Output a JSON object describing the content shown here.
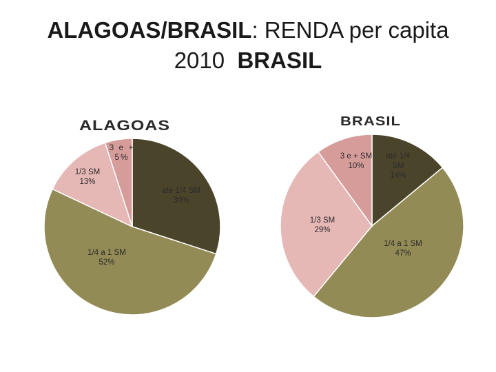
{
  "title": {
    "part1_bold": "ALAGOAS/BRASIL",
    "part1_rest": ": RENDA  per capita",
    "part2_year": "2010",
    "part2_bold": "BRASIL"
  },
  "colors": {
    "ate_1_4": "#4a442b",
    "de_1_4_a_1": "#938b55",
    "de_1_3": "#e5b8b6",
    "tres_e_mais": "#d69c9a",
    "edge": "#ffffff"
  },
  "chart_data": [
    {
      "type": "pie",
      "title": "ALAGOAS",
      "slices": [
        {
          "label": "até 1/4 SM",
          "value": 30,
          "value_label": "30%",
          "color_key": "ate_1_4"
        },
        {
          "label": "1/4 a 1 SM",
          "value": 52,
          "value_label": "52%",
          "color_key": "de_1_4_a_1"
        },
        {
          "label": "1/3 SM",
          "value": 13,
          "value_label": "13%",
          "color_key": "de_1_3"
        },
        {
          "label": "3 e +",
          "value": 5,
          "value_label": "5%",
          "color_key": "tres_e_mais"
        }
      ]
    },
    {
      "type": "pie",
      "title": "BRASIL",
      "slices": [
        {
          "label": "até 1/4 SM",
          "value": 14,
          "value_label": "14%",
          "color_key": "ate_1_4"
        },
        {
          "label": "1/4 a 1 SM",
          "value": 47,
          "value_label": "47%",
          "color_key": "de_1_4_a_1"
        },
        {
          "label": "1/3 SM",
          "value": 29,
          "value_label": "29%",
          "color_key": "de_1_3"
        },
        {
          "label": "3 e + SM",
          "value": 10,
          "value_label": "10%",
          "color_key": "tres_e_mais"
        }
      ]
    }
  ]
}
